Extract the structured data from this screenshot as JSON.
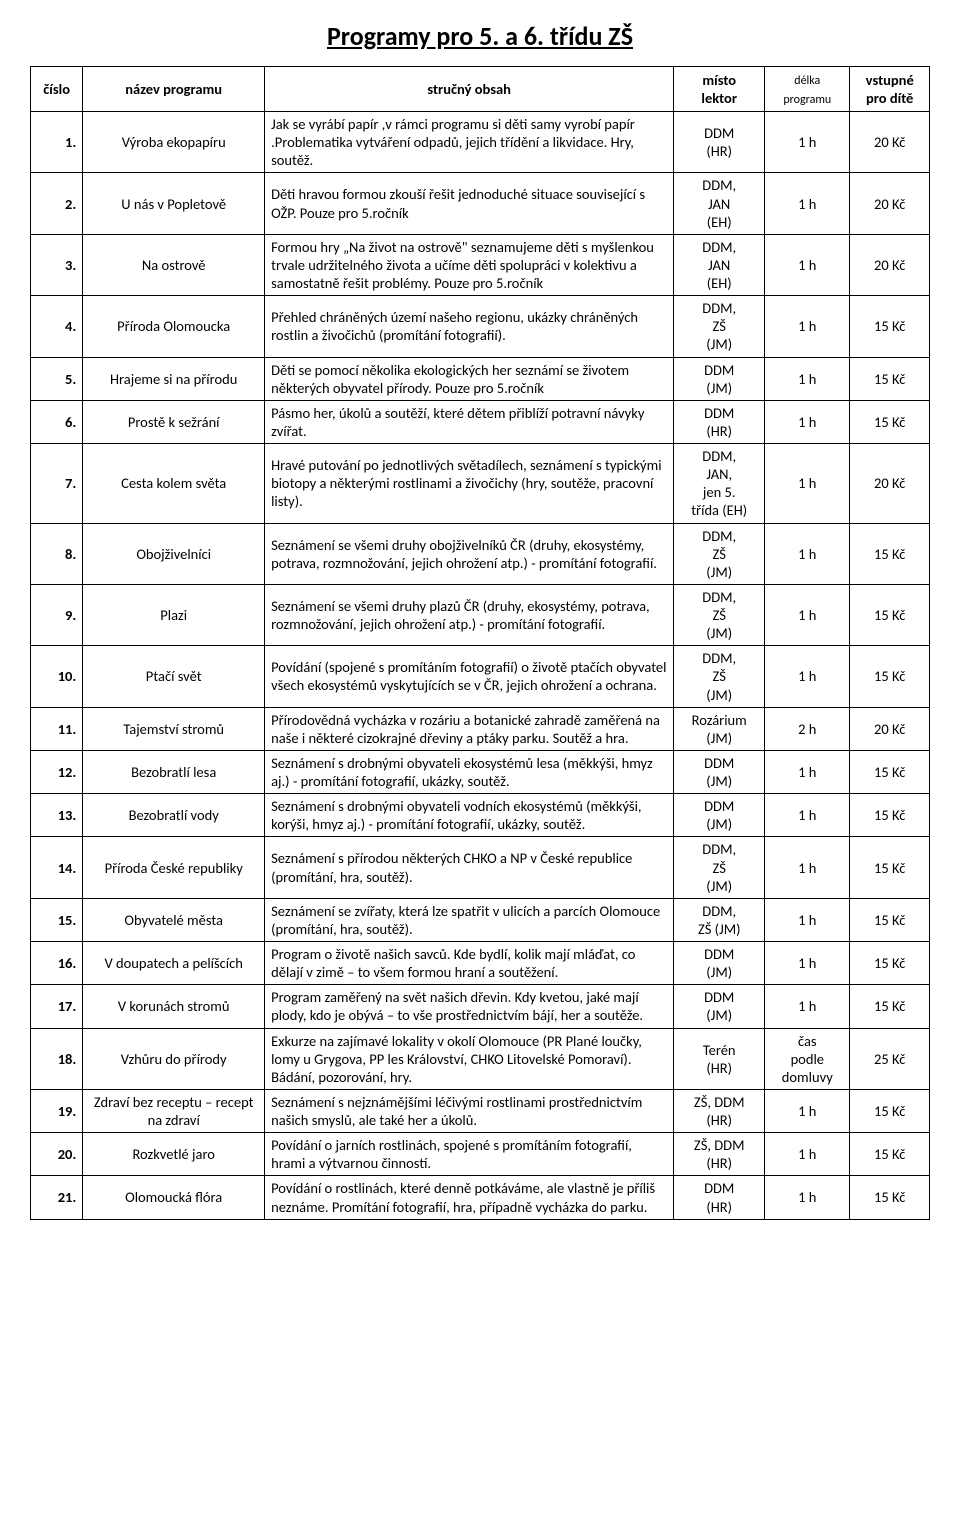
{
  "title": "Programy pro 5. a 6. třídu ZŠ",
  "headers": {
    "num": "číslo",
    "name": "název programu",
    "desc": "stručný obsah",
    "loc_line1": "místo",
    "loc_line2": "lektor",
    "dur_line1": "délka",
    "dur_line2": "programu",
    "price_line1": "vstupné",
    "price_line2": "pro dítě"
  },
  "rows": [
    {
      "n": "1.",
      "name": "Výroba ekopapíru",
      "desc": "Jak se vyrábí papír ,v rámci programu si děti samy vyrobí papír .Problematika vytváření odpadů, jejich třídění a likvidace. Hry, soutěž.",
      "loc": "DDM\n(HR)",
      "dur": "1 h",
      "price": "20 Kč"
    },
    {
      "n": "2.",
      "name": "U nás v Popletově",
      "desc": "Děti hravou formou zkouší řešit jednoduché situace související s OŽP. Pouze pro 5.ročník",
      "loc": "DDM,\nJAN\n(EH)",
      "dur": "1 h",
      "price": "20 Kč"
    },
    {
      "n": "3.",
      "name": "Na ostrově",
      "desc": "Formou hry „Na život na ostrově\" seznamujeme děti s myšlenkou trvale udržitelného života a učíme děti spolupráci v kolektivu a samostatně řešit problémy. Pouze pro 5.ročník",
      "loc": "DDM,\nJAN\n(EH)",
      "dur": "1 h",
      "price": "20 Kč"
    },
    {
      "n": "4.",
      "name": "Příroda Olomoucka",
      "desc": "Přehled chráněných území našeho regionu, ukázky chráněných rostlin a živočichů (promítání fotografií).",
      "loc": "DDM,\nZŠ\n(JM)",
      "dur": "1 h",
      "price": "15 Kč"
    },
    {
      "n": "5.",
      "name": "Hrajeme si na přírodu",
      "desc": "Děti se pomocí několika ekologických her seznámí se životem některých obyvatel přírody. Pouze pro 5.ročník",
      "loc": "DDM\n(JM)",
      "dur": "1 h",
      "price": "15 Kč"
    },
    {
      "n": "6.",
      "name": "Prostě k sežrání",
      "desc": "Pásmo her, úkolů a soutěží, které dětem přiblíží potravní návyky zvířat.",
      "loc": "DDM\n(HR)",
      "dur": "1 h",
      "price": "15 Kč"
    },
    {
      "n": "7.",
      "name": "Cesta kolem světa",
      "desc": "Hravé putování po jednotlivých světadílech, seznámení s typickými biotopy a některými rostlinami a živočichy (hry, soutěže, pracovní listy).",
      "loc": "DDM,\nJAN,\njen 5.\ntřída (EH)",
      "dur": "1 h",
      "price": "20 Kč"
    },
    {
      "n": "8.",
      "name": "Obojživelníci",
      "desc": "Seznámení se všemi druhy obojživelníků ČR (druhy, ekosystémy, potrava, rozmnožování, jejich ohrožení atp.) - promítání fotografií.",
      "loc": "DDM,\nZŠ\n(JM)",
      "dur": "1 h",
      "price": "15 Kč"
    },
    {
      "n": "9.",
      "name": "Plazi",
      "desc": "Seznámení se všemi druhy plazů ČR (druhy, ekosystémy, potrava, rozmnožování, jejich ohrožení atp.) - promítání fotografií.",
      "loc": "DDM,\nZŠ\n(JM)",
      "dur": "1 h",
      "price": "15 Kč"
    },
    {
      "n": "10.",
      "name": "Ptačí svět",
      "desc": "Povídání (spojené s promítáním fotografií) o životě ptačích obyvatel všech ekosystémů vyskytujících se v ČR, jejich ohrožení a ochrana.",
      "loc": "DDM,\nZŠ\n(JM)",
      "dur": "1 h",
      "price": "15 Kč"
    },
    {
      "n": "11.",
      "name": "Tajemství stromů",
      "desc": "Přírodovědná vycházka v rozáriu a botanické zahradě zaměřená na naše i některé cizokrajné dřeviny a ptáky parku. Soutěž a hra.",
      "loc": "Rozárium\n(JM)",
      "dur": "2 h",
      "price": "20 Kč"
    },
    {
      "n": "12.",
      "name": "Bezobratlí lesa",
      "desc": "Seznámení s drobnými obyvateli ekosystémů lesa (měkkýši, hmyz aj.) - promítání fotografií, ukázky, soutěž.",
      "loc": "DDM\n(JM)",
      "dur": "1 h",
      "price": "15 Kč"
    },
    {
      "n": "13.",
      "name": "Bezobratlí vody",
      "desc": "Seznámení s drobnými obyvateli vodních ekosystémů (měkkýši, korýši, hmyz aj.) - promítání fotografií, ukázky, soutěž.",
      "loc": "DDM\n(JM)",
      "dur": "1 h",
      "price": "15 Kč"
    },
    {
      "n": "14.",
      "name": "Příroda České republiky",
      "desc": "Seznámení s přírodou některých CHKO a NP v České republice (promítání, hra, soutěž).",
      "loc": "DDM,\nZŠ\n(JM)",
      "dur": "1 h",
      "price": "15 Kč"
    },
    {
      "n": "15.",
      "name": "Obyvatelé města",
      "desc": "Seznámení se zvířaty, která lze spatřit v ulicích a parcích Olomouce (promítání, hra, soutěž).",
      "loc": "DDM,\nZŠ (JM)",
      "dur": "1 h",
      "price": "15 Kč"
    },
    {
      "n": "16.",
      "name": "V doupatech a pelíšcích",
      "desc": "Program o životě našich savců. Kde bydlí, kolik mají mláďat, co dělají v zimě – to všem formou hraní a soutěžení.",
      "loc": "DDM\n(JM)",
      "dur": "1 h",
      "price": "15 Kč"
    },
    {
      "n": "17.",
      "name": "V korunách stromů",
      "desc": "Program zaměřený na svět našich dřevin. Kdy kvetou, jaké mají plody, kdo je obývá – to vše prostřednictvím bájí, her a soutěže.",
      "loc": "DDM\n(JM)",
      "dur": "1 h",
      "price": "15 Kč"
    },
    {
      "n": "18.",
      "name": "Vzhůru do přírody",
      "desc": "Exkurze na zajímavé lokality v okolí Olomouce (PR Plané loučky, lomy u Grygova, PP les Království, CHKO Litovelské Pomoraví). Bádání, pozorování, hry.",
      "loc": "Terén\n(HR)",
      "dur": "čas\npodle\ndomluvy",
      "price": "25 Kč"
    },
    {
      "n": "19.",
      "name": "Zdraví bez receptu – recept na zdraví",
      "desc": "Seznámení s nejznámějšími léčivými rostlinami prostřednictvím našich smyslů, ale také her a úkolů.",
      "loc": "ZŠ, DDM\n(HR)",
      "dur": "1 h",
      "price": "15 Kč"
    },
    {
      "n": "20.",
      "name": "Rozkvetlé jaro",
      "desc": "Povídání o jarních rostlinách, spojené s promítáním fotografií, hrami a výtvarnou činností.",
      "loc": "ZŠ, DDM\n(HR)",
      "dur": "1 h",
      "price": "15 Kč"
    },
    {
      "n": "21.",
      "name": "Olomoucká flóra",
      "desc": "Povídání o rostlinách, které denně potkáváme, ale vlastně je příliš neznáme. Promítání fotografií, hra, případně vycházka do parku.",
      "loc": "DDM\n(HR)",
      "dur": "1 h",
      "price": "15 Kč"
    }
  ]
}
